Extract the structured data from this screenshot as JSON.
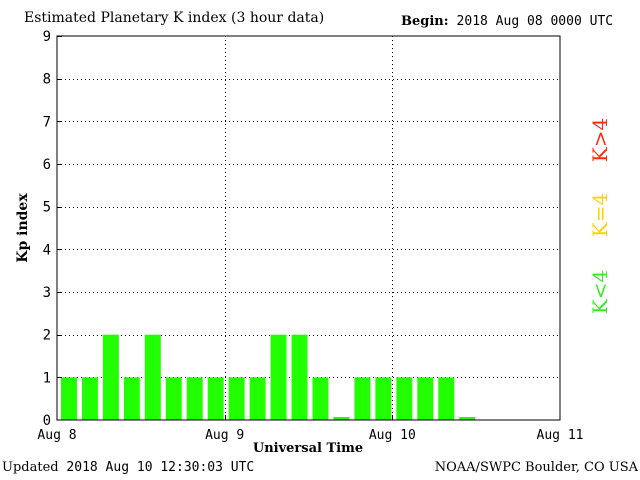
{
  "header": {
    "begin_label": "Begin:",
    "begin_date": "2018 Aug 08 0000 UTC"
  },
  "footer": {
    "updated_label": "Updated",
    "updated_value": "2018 Aug 10 12:30:03 UTC",
    "credit": "NOAA/SWPC Boulder, CO USA"
  },
  "legend": [
    {
      "label": "K>4",
      "color": "#ff2a0a"
    },
    {
      "label": "K=4",
      "color": "#ffd200"
    },
    {
      "label": "K<4",
      "color": "#33ee22"
    }
  ],
  "chart_data": {
    "type": "bar",
    "title": "Estimated Planetary K index (3 hour data)",
    "xlabel": "Universal Time",
    "ylabel": "Kp index",
    "ylim": [
      0,
      9
    ],
    "yticks": [
      0,
      1,
      2,
      3,
      4,
      5,
      6,
      7,
      8,
      9
    ],
    "xticks": [
      "Aug 8",
      "Aug 9",
      "Aug 10",
      "Aug 11"
    ],
    "interval_hours": 3,
    "slots_total": 24,
    "grid": true,
    "bar_color": "#22ff00",
    "values": [
      1,
      1,
      2,
      1,
      2,
      1,
      1,
      1,
      1,
      1,
      2,
      2,
      1,
      0.07,
      1,
      1,
      1,
      1,
      1,
      0.07
    ]
  }
}
